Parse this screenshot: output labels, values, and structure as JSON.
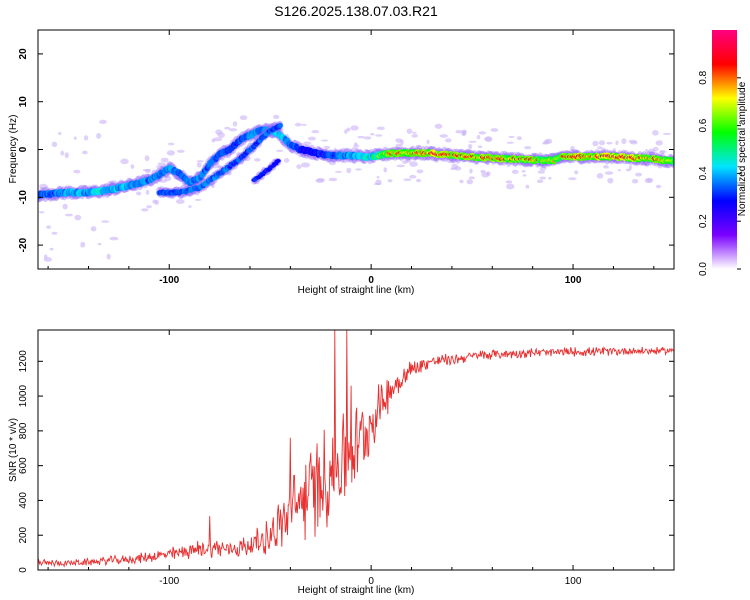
{
  "title": "S126.2025.138.07.03.R21",
  "chart_data": [
    {
      "type": "heatmap",
      "xlabel": "Height of straight line (km)",
      "ylabel": "Frequency (Hz)",
      "xlim": [
        -165,
        150
      ],
      "ylim": [
        -25,
        25
      ],
      "x_ticks": [
        -100,
        0,
        100
      ],
      "y_ticks": [
        -20,
        -10,
        0,
        10,
        20
      ],
      "ridge": {
        "x": [
          -165,
          -150,
          -140,
          -130,
          -120,
          -110,
          -100,
          -95,
          -90,
          -85,
          -80,
          -75,
          -70,
          -65,
          -60,
          -55,
          -50,
          -45,
          -40,
          -35,
          -30,
          -25,
          -20,
          -15,
          -10,
          -5,
          0,
          10,
          20,
          30,
          40,
          50,
          60,
          70,
          80,
          90,
          95,
          100,
          110,
          120,
          130,
          140,
          150
        ],
        "y": [
          -9.5,
          -9,
          -9,
          -8.5,
          -7.5,
          -6.5,
          -4,
          -5,
          -7,
          -6,
          -3,
          -1,
          0,
          2,
          3,
          4,
          4,
          3,
          1,
          0,
          -0.5,
          -1,
          -1.2,
          -1.2,
          -1.3,
          -1.5,
          -1.5,
          -0.8,
          -0.8,
          -0.8,
          -1.2,
          -1.5,
          -1.8,
          -2,
          -2.2,
          -2.3,
          -1.5,
          -1.5,
          -1.5,
          -1.5,
          -1.8,
          -2,
          -2.5
        ],
        "amplitude": [
          0.3,
          0.4,
          0.42,
          0.45,
          0.4,
          0.35,
          0.38,
          0.35,
          0.35,
          0.35,
          0.35,
          0.3,
          0.3,
          0.3,
          0.35,
          0.35,
          0.45,
          0.45,
          0.35,
          0.25,
          0.2,
          0.25,
          0.3,
          0.35,
          0.4,
          0.45,
          0.5,
          0.8,
          0.85,
          0.9,
          0.8,
          0.85,
          0.85,
          0.8,
          0.8,
          0.7,
          0.8,
          0.85,
          0.9,
          0.92,
          0.88,
          0.8,
          0.7
        ]
      },
      "secondary_branch": {
        "x": [
          -105,
          -95,
          -85,
          -75,
          -65,
          -55,
          -50,
          -45
        ],
        "y": [
          -9,
          -9,
          -8,
          -5,
          -2,
          2,
          4,
          5
        ],
        "amplitude": [
          0.3,
          0.32,
          0.35,
          0.35,
          0.3,
          0.3,
          0.35,
          0.3
        ]
      },
      "faint_branch": {
        "x": [
          -58,
          -52,
          -46
        ],
        "y": [
          -6.5,
          -4.5,
          -2.5
        ],
        "amplitude": [
          0.25,
          0.25,
          0.2
        ]
      },
      "colorbar": {
        "label": "Normalized spectral amplitude",
        "range": [
          0,
          1
        ],
        "ticks": [
          0.0,
          0.2,
          0.4,
          0.6,
          0.8
        ],
        "tick_labels": [
          "0.0",
          "0.2",
          "0.4",
          "0.6",
          "0.8"
        ],
        "colormap": [
          "#ffffff",
          "#7a00ff",
          "#0000ff",
          "#00e5ff",
          "#00ff00",
          "#ffff00",
          "#ff0000",
          "#ff0080"
        ]
      }
    },
    {
      "type": "line",
      "xlabel": "Height of straight line (km)",
      "ylabel": "SNR (10 * v/v)",
      "xlim": [
        -165,
        150
      ],
      "ylim": [
        0,
        1380
      ],
      "x_ticks": [
        -100,
        0,
        100
      ],
      "y_ticks": [
        0,
        200,
        400,
        600,
        800,
        1000,
        1200
      ],
      "series": [
        {
          "name": "SNR",
          "color": "#e83030",
          "x": [
            -165,
            -150,
            -140,
            -130,
            -120,
            -110,
            -100,
            -90,
            -80,
            -70,
            -60,
            -50,
            -45,
            -40,
            -35,
            -30,
            -25,
            -20,
            -15,
            -10,
            -5,
            0,
            5,
            10,
            15,
            20,
            25,
            30,
            40,
            50,
            60,
            70,
            80,
            90,
            100,
            110,
            120,
            130,
            140,
            150
          ],
          "y": [
            40,
            40,
            45,
            55,
            60,
            75,
            90,
            110,
            130,
            120,
            140,
            200,
            260,
            320,
            400,
            450,
            500,
            560,
            620,
            680,
            760,
            850,
            950,
            1040,
            1100,
            1150,
            1180,
            1200,
            1210,
            1230,
            1240,
            1245,
            1250,
            1250,
            1255,
            1255,
            1258,
            1260,
            1260,
            1262
          ],
          "noise": [
            20,
            20,
            22,
            25,
            28,
            32,
            40,
            50,
            60,
            55,
            70,
            110,
            150,
            200,
            260,
            280,
            300,
            320,
            300,
            260,
            220,
            180,
            140,
            100,
            80,
            60,
            45,
            40,
            35,
            30,
            30,
            30,
            28,
            28,
            28,
            28,
            26,
            24,
            22,
            20
          ],
          "spikes": [
            {
              "x": -80,
              "y": 310
            },
            {
              "x": -40,
              "y": 760
            },
            {
              "x": -18,
              "y": 1380
            },
            {
              "x": -12,
              "y": 1380
            },
            {
              "x": -10,
              "y": 1060
            }
          ]
        }
      ]
    }
  ]
}
